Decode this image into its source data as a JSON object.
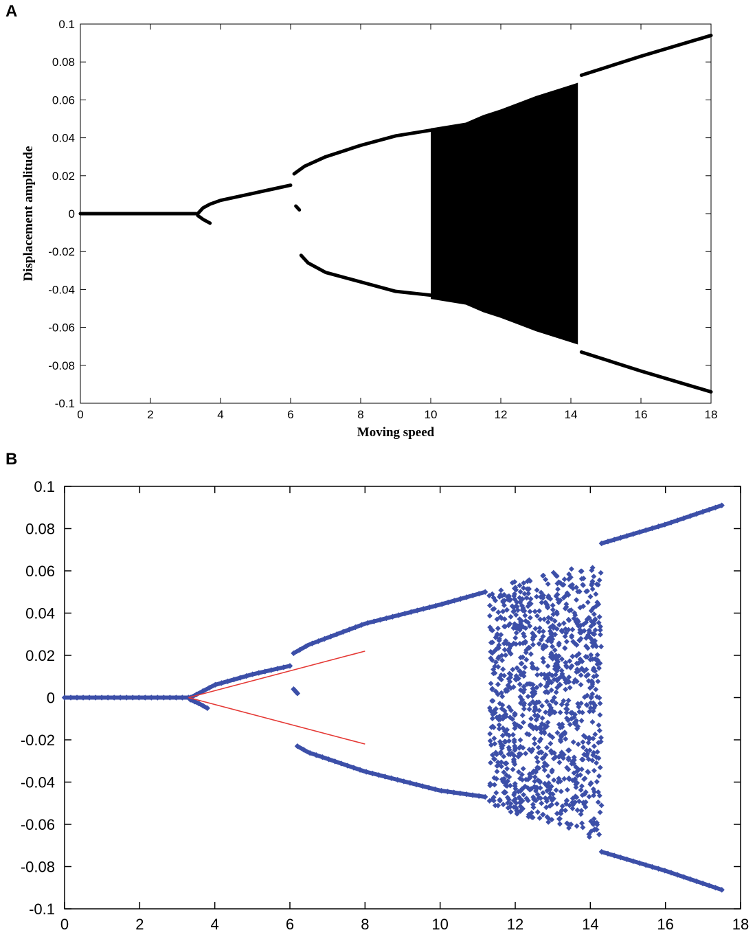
{
  "colors": {
    "panel_a_marks": "#000000",
    "panel_b_marks": "#3c4fa8",
    "panel_b_fit_curve": "#e53935"
  },
  "panels": {
    "a_letter": "A",
    "b_letter": "B"
  },
  "chart_data": [
    {
      "panel": "A",
      "type": "scatter",
      "title": "",
      "xlabel": "Moving speed",
      "ylabel": "Displacement amplitude",
      "xlim": [
        0,
        18
      ],
      "ylim": [
        -0.1,
        0.1
      ],
      "xticks": [
        0,
        2,
        4,
        6,
        8,
        10,
        12,
        14,
        16,
        18
      ],
      "xtick_labels": [
        "0",
        "2",
        "4",
        "6",
        "8",
        "10",
        "12",
        "14",
        "16",
        "18"
      ],
      "yticks": [
        0.1,
        0.08,
        0.06,
        0.04,
        0.02,
        0,
        -0.02,
        -0.04,
        -0.06,
        -0.08,
        -0.1
      ],
      "ytick_labels": [
        "0.1",
        "0.08",
        "0.06",
        "0.04",
        "0.02",
        "0",
        "-0.02",
        "-0.04",
        "-0.06",
        "-0.08",
        "-0.1"
      ],
      "grid": false,
      "series": [
        {
          "role": "stable-equilibrium",
          "x": [
            0,
            3.3
          ],
          "y": [
            0,
            0
          ]
        },
        {
          "role": "branch-1-upper",
          "x": [
            3.35,
            3.5,
            3.7,
            4.0,
            4.5,
            5.0,
            5.5,
            6.0
          ],
          "y": [
            0.0,
            0.003,
            0.005,
            0.007,
            0.009,
            0.011,
            0.013,
            0.015
          ]
        },
        {
          "role": "branch-1-lower",
          "x": [
            3.35,
            3.5,
            3.7
          ],
          "y": [
            -0.001,
            -0.003,
            -0.005
          ]
        },
        {
          "role": "branch-2-upper",
          "x": [
            6.1,
            6.4,
            7,
            8,
            9,
            10
          ],
          "y": [
            0.021,
            0.025,
            0.03,
            0.036,
            0.041,
            0.044
          ]
        },
        {
          "role": "branch-2-lower",
          "x": [
            6.3,
            6.5,
            7,
            8,
            9,
            10
          ],
          "y": [
            -0.022,
            -0.026,
            -0.031,
            -0.036,
            -0.041,
            -0.043
          ]
        },
        {
          "role": "isolated-small",
          "x": [
            6.15,
            6.25
          ],
          "y": [
            0.004,
            0.002
          ]
        },
        {
          "role": "chaotic-band-envelope",
          "x": [
            10,
            11,
            11.5,
            12,
            13,
            14.2
          ],
          "y_max": [
            0.045,
            0.048,
            0.052,
            0.055,
            0.062,
            0.069
          ],
          "y_min": [
            -0.045,
            -0.048,
            -0.052,
            -0.055,
            -0.062,
            -0.069
          ]
        },
        {
          "role": "branch-3-upper",
          "x": [
            14.3,
            16,
            18
          ],
          "y": [
            0.073,
            0.083,
            0.094
          ]
        },
        {
          "role": "branch-3-lower",
          "x": [
            14.3,
            16,
            18
          ],
          "y": [
            -0.073,
            -0.083,
            -0.094
          ]
        }
      ]
    },
    {
      "panel": "B",
      "type": "scatter",
      "title": "",
      "xlabel": "",
      "ylabel": "",
      "xlim": [
        0,
        18
      ],
      "ylim": [
        -0.1,
        0.1
      ],
      "xticks": [
        0,
        2,
        4,
        6,
        8,
        10,
        12,
        14,
        16,
        18
      ],
      "xtick_labels": [
        "0",
        "2",
        "4",
        "6",
        "8",
        "10",
        "12",
        "14",
        "16",
        "18"
      ],
      "yticks": [
        0.1,
        0.08,
        0.06,
        0.04,
        0.02,
        0,
        -0.02,
        -0.04,
        -0.06,
        -0.08,
        -0.1
      ],
      "ytick_labels": [
        "0.1",
        "0.08",
        "0.06",
        "0.04",
        "0.02",
        "0",
        "-0.02",
        "-0.04",
        "-0.06",
        "-0.08",
        "-0.1"
      ],
      "grid": false,
      "series": [
        {
          "role": "stable-equilibrium",
          "x": [
            0,
            3.3
          ],
          "y": [
            0,
            0
          ]
        },
        {
          "role": "branch-1-upper",
          "x": [
            3.35,
            4.0,
            5.0,
            6.0
          ],
          "y": [
            0.0,
            0.006,
            0.011,
            0.015
          ]
        },
        {
          "role": "branch-1-lower",
          "x": [
            3.35,
            3.6,
            3.8
          ],
          "y": [
            -0.001,
            -0.003,
            -0.005
          ]
        },
        {
          "role": "fit-curve-upper",
          "x": [
            3.3,
            8.0
          ],
          "y": [
            0.0,
            0.022
          ]
        },
        {
          "role": "fit-curve-lower",
          "x": [
            3.3,
            8.0
          ],
          "y": [
            0.0,
            -0.022
          ]
        },
        {
          "role": "branch-2-upper",
          "x": [
            6.1,
            6.5,
            8,
            10,
            11.2
          ],
          "y": [
            0.021,
            0.025,
            0.035,
            0.044,
            0.05
          ]
        },
        {
          "role": "branch-2-lower",
          "x": [
            6.2,
            6.5,
            8,
            10,
            11.2
          ],
          "y": [
            -0.023,
            -0.026,
            -0.035,
            -0.044,
            -0.047
          ]
        },
        {
          "role": "isolated-small",
          "x": [
            6.1,
            6.2
          ],
          "y": [
            0.004,
            0.002
          ]
        },
        {
          "role": "chaotic-band-envelope",
          "x": [
            11.3,
            12,
            13,
            14.3
          ],
          "y_max": [
            0.05,
            0.055,
            0.06,
            0.063
          ],
          "y_min": [
            -0.05,
            -0.055,
            -0.06,
            -0.068
          ]
        },
        {
          "role": "branch-3-upper",
          "x": [
            14.3,
            16,
            17.5
          ],
          "y": [
            0.073,
            0.082,
            0.091
          ]
        },
        {
          "role": "branch-3-lower",
          "x": [
            14.3,
            16,
            17.5
          ],
          "y": [
            -0.073,
            -0.082,
            -0.091
          ]
        }
      ]
    }
  ]
}
